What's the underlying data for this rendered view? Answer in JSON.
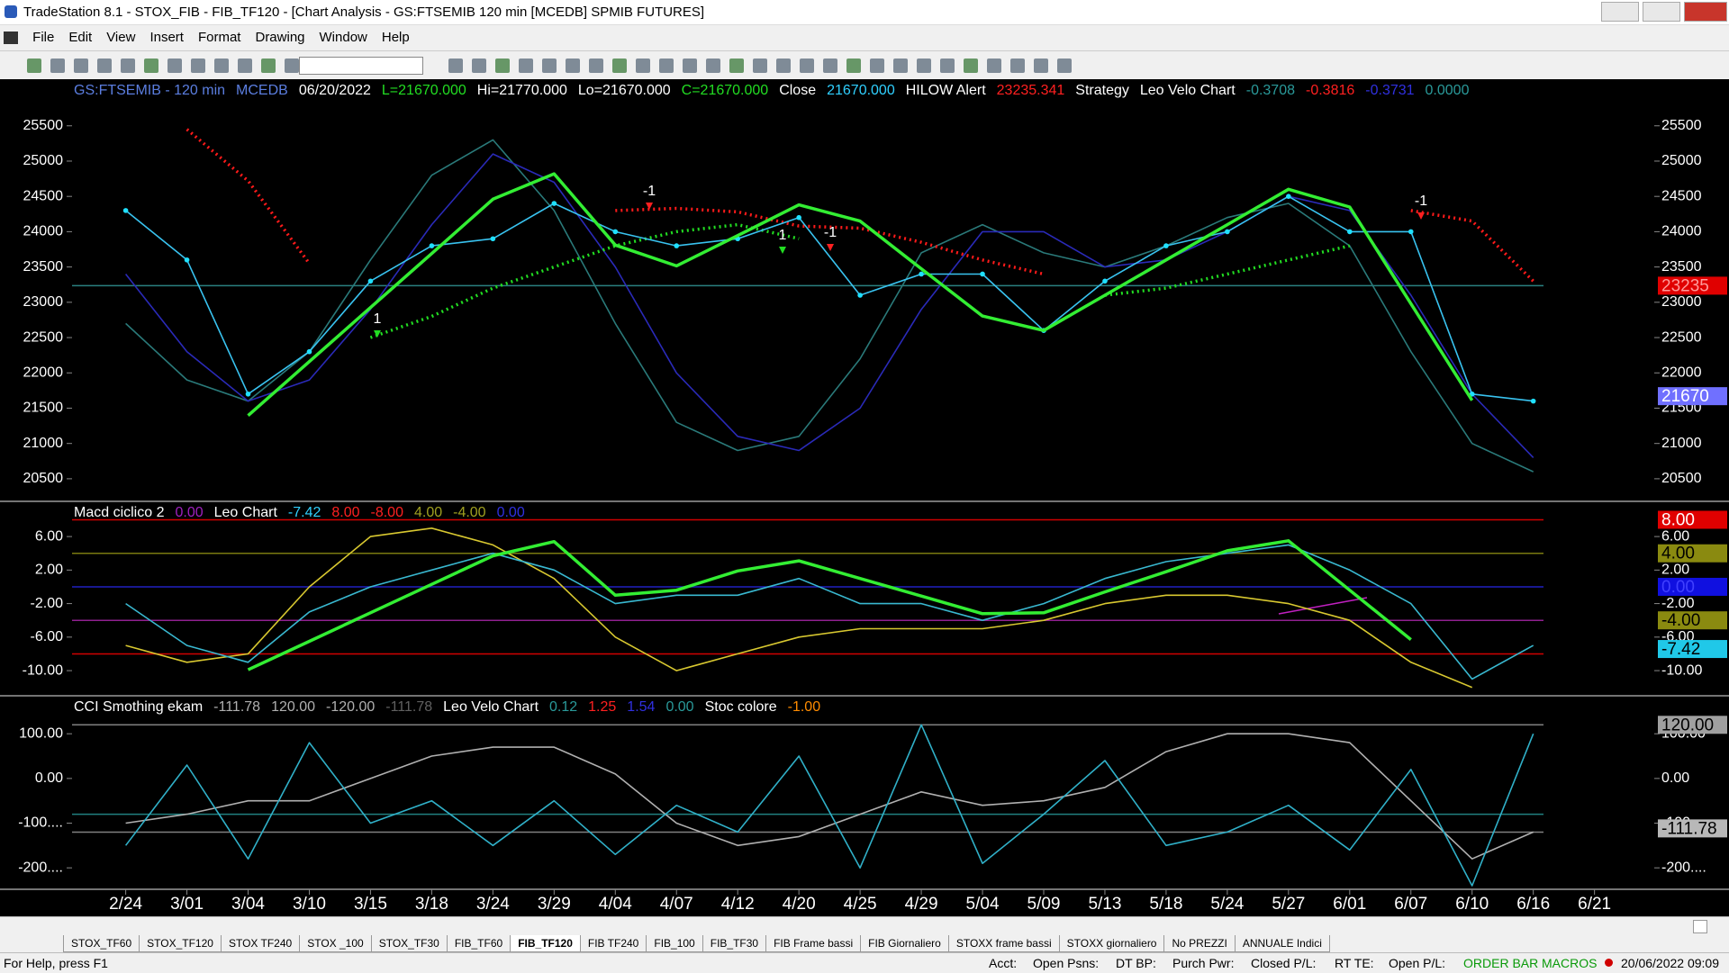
{
  "window": {
    "title": "TradeStation 8.1 - STOX_FIB - FIB_TF120 - [Chart Analysis - GS:FTSEMIB  120 min  [MCEDB] SPMIB FUTURES]"
  },
  "menu": [
    "File",
    "Edit",
    "View",
    "Insert",
    "Format",
    "Drawing",
    "Window",
    "Help"
  ],
  "chart_data": [
    {
      "type": "line",
      "legend_items": [
        {
          "text": "GS:FTSEMIB - 120 min",
          "color": "#5b7ee0"
        },
        {
          "text": "MCEDB",
          "color": "#5b7ee0"
        },
        {
          "text": "06/20/2022",
          "color": "#ffffff"
        },
        {
          "text": "L=21670.000",
          "color": "#22dd22"
        },
        {
          "text": "Hi=21770.000",
          "color": "#ffffff"
        },
        {
          "text": "Lo=21670.000",
          "color": "#ffffff"
        },
        {
          "text": "C=21670.000",
          "color": "#22dd22"
        },
        {
          "text": "Close",
          "color": "#ffffff"
        },
        {
          "text": "21670.000",
          "color": "#30d0ff"
        },
        {
          "text": "HILOW Alert",
          "color": "#ffffff"
        },
        {
          "text": "23235.341",
          "color": "#ff2020"
        },
        {
          "text": "Strategy",
          "color": "#ffffff"
        },
        {
          "text": "Leo Velo Chart",
          "color": "#ffffff"
        },
        {
          "text": "-0.3708",
          "color": "#2a9a9a"
        },
        {
          "text": "-0.3816",
          "color": "#ff2020"
        },
        {
          "text": "-0.3731",
          "color": "#3030e0"
        },
        {
          "text": "0.0000",
          "color": "#2a9a9a"
        }
      ],
      "categories": [
        "2/24",
        "3/01",
        "3/04",
        "3/10",
        "3/15",
        "3/18",
        "3/24",
        "3/29",
        "4/04",
        "4/07",
        "4/12",
        "4/20",
        "4/25",
        "4/29",
        "5/04",
        "5/09",
        "5/13",
        "5/18",
        "5/24",
        "5/27",
        "6/01",
        "6/07",
        "6/10",
        "6/16",
        "6/21"
      ],
      "ylim": [
        20180,
        26160
      ],
      "yticks": [
        20500,
        21000,
        21500,
        22000,
        22500,
        23000,
        23500,
        24000,
        24500,
        25000,
        25500
      ],
      "series": [
        {
          "color": "#2a7a7a",
          "style": "solid",
          "values": [
            22700,
            21900,
            21600,
            22300,
            23600,
            24800,
            25300,
            24300,
            22700,
            21300,
            20900,
            21100,
            22200,
            23700,
            24100,
            23700,
            23500,
            23800,
            24200,
            24400,
            23800,
            22300,
            21000,
            20600,
            null
          ]
        },
        {
          "color": "#2a2ab8",
          "style": "solid",
          "values": [
            23400,
            22300,
            21600,
            21900,
            22900,
            24100,
            25100,
            24700,
            23500,
            22000,
            21100,
            20900,
            21500,
            22900,
            24000,
            24000,
            23500,
            23600,
            24000,
            24500,
            24300,
            23100,
            21700,
            20800,
            null
          ]
        },
        {
          "color": "#ff1a1a",
          "style": "dotted",
          "values": [
            null,
            25450,
            24720,
            23550,
            null,
            null,
            null,
            null,
            24300,
            24330,
            24280,
            24080,
            24050,
            23850,
            23600,
            23400,
            null,
            null,
            null,
            null,
            null,
            24300,
            24150,
            23300,
            null
          ]
        },
        {
          "color": "#22dd22",
          "style": "dotted",
          "values": [
            null,
            null,
            null,
            null,
            22500,
            22800,
            23200,
            23500,
            23800,
            24000,
            24100,
            23900,
            null,
            null,
            null,
            null,
            23100,
            23200,
            23400,
            23600,
            23800,
            null,
            null,
            null,
            null
          ]
        },
        {
          "color": "#39c3f0",
          "style": "solid",
          "markers": true,
          "values": [
            24300,
            23600,
            21700,
            22300,
            23300,
            23800,
            23900,
            24400,
            24000,
            23800,
            23900,
            24200,
            23100,
            23400,
            23400,
            22600,
            23300,
            23800,
            24000,
            24500,
            24000,
            24000,
            21700,
            21600,
            null
          ]
        },
        {
          "color": "#33ee33",
          "style": "thick",
          "values": [
            null,
            null,
            21395,
            22160,
            22925,
            23690,
            24460,
            24820,
            23810,
            23515,
            23945,
            24380,
            24150,
            23475,
            22805,
            22600,
            23100,
            23600,
            24100,
            24600,
            24350,
            22980,
            21610,
            null,
            null
          ]
        }
      ],
      "markers": [
        {
          "value": 23235,
          "label": "23235",
          "color": "#e00000",
          "text_color": "#ff9a9a",
          "line_color": "#2a8080"
        },
        {
          "value": 21670,
          "label": "21670",
          "color": "#7070ff",
          "text_color": "#ffffff"
        }
      ],
      "annotations": [
        "-1",
        "-1",
        "-1",
        "1",
        "1"
      ]
    },
    {
      "type": "line",
      "legend_items": [
        {
          "text": "Macd ciclico 2",
          "color": "#ffffff"
        },
        {
          "text": "0.00",
          "color": "#a020c0"
        },
        {
          "text": "Leo Chart",
          "color": "#ffffff"
        },
        {
          "text": "-7.42",
          "color": "#30d0ff"
        },
        {
          "text": "8.00",
          "color": "#ff2020"
        },
        {
          "text": "-8.00",
          "color": "#ff2020"
        },
        {
          "text": "4.00",
          "color": "#a0a020"
        },
        {
          "text": "-4.00",
          "color": "#a0a020"
        },
        {
          "text": "0.00",
          "color": "#3030e0"
        }
      ],
      "ylim": [
        -13,
        10.2
      ],
      "yticks": [
        {
          "value": -10,
          "label": "-10.00"
        },
        {
          "value": -6,
          "label": "-6.00"
        },
        {
          "value": -2,
          "label": "-2.00"
        },
        {
          "value": 2,
          "label": "2.00"
        },
        {
          "value": 6,
          "label": "6.00"
        }
      ],
      "levels": [
        {
          "value": 8,
          "color": "#d00000"
        },
        {
          "value": 4,
          "color": "#7a7a10"
        },
        {
          "value": 0,
          "color": "#2020c0"
        },
        {
          "value": -4,
          "color": "#902090"
        },
        {
          "value": -8,
          "color": "#d00000"
        }
      ],
      "series": [
        {
          "color": "#d8c830",
          "style": "solid",
          "values": [
            -7,
            -9,
            -8,
            0,
            6,
            7,
            5,
            1,
            -6,
            -10,
            -8,
            -6,
            -5,
            -5,
            -5,
            -4,
            -2,
            -1,
            -1,
            -2,
            -4,
            -9,
            -12,
            null,
            null
          ]
        },
        {
          "color": "#39b8d0",
          "style": "solid",
          "values": [
            -2,
            -7,
            -9,
            -3,
            0,
            2,
            4,
            2,
            -2,
            -1,
            -1,
            1,
            -2,
            -2,
            -4,
            -2,
            1,
            3,
            4,
            5,
            2,
            -2,
            -11,
            -7,
            null
          ]
        },
        {
          "color": "#33ee33",
          "style": "thick",
          "values": [
            null,
            null,
            -9.9,
            -6.5,
            -3.1,
            0.3,
            3.7,
            5.4,
            -1.0,
            -0.4,
            1.9,
            3.1,
            1.0,
            -1.1,
            -3.2,
            -3.1,
            -0.6,
            1.8,
            4.3,
            5.5,
            -0.4,
            -6.3,
            null,
            null,
            null
          ]
        }
      ],
      "markers": [
        {
          "value": 8,
          "label": "8.00",
          "color": "#e00000",
          "text_color": "#ffffff"
        },
        {
          "value": 4,
          "label": "4.00",
          "color": "#8a8a10",
          "text_color": "#000000"
        },
        {
          "value": 0,
          "label": "0.00",
          "color": "#1010e0",
          "text_color": "#4040ff"
        },
        {
          "value": -4,
          "label": "-4.00",
          "color": "#8a8a10",
          "text_color": "#000000"
        },
        {
          "value": -7.42,
          "label": "-7.42",
          "color": "#20c8e8",
          "text_color": "#000000"
        }
      ]
    },
    {
      "type": "line",
      "legend_items": [
        {
          "text": "CCI Smothing ekam",
          "color": "#ffffff"
        },
        {
          "text": "-111.78",
          "color": "#b0b0b0"
        },
        {
          "text": "120.00",
          "color": "#b0b0b0"
        },
        {
          "text": "-120.00",
          "color": "#b0b0b0"
        },
        {
          "text": "-111.78",
          "color": "#606060"
        },
        {
          "text": "Leo Velo Chart",
          "color": "#ffffff"
        },
        {
          "text": "0.12",
          "color": "#2a9a9a"
        },
        {
          "text": "1.25",
          "color": "#ff2020"
        },
        {
          "text": "1.54",
          "color": "#3030e0"
        },
        {
          "text": "0.00",
          "color": "#2a9a9a"
        },
        {
          "text": "Stoc colore",
          "color": "#ffffff"
        },
        {
          "text": "-1.00",
          "color": "#ff8c00"
        }
      ],
      "ylim": [
        -248,
        185
      ],
      "yticks": [
        {
          "value": -200,
          "label": "-200...."
        },
        {
          "value": -100,
          "label": "-100...."
        },
        {
          "value": 0,
          "label": "0.00"
        },
        {
          "value": 100,
          "label": "100.00"
        }
      ],
      "levels": [
        {
          "value": 120,
          "color": "#808080"
        },
        {
          "value": -80,
          "color": "#208080"
        },
        {
          "value": -120,
          "color": "#808080"
        }
      ],
      "series": [
        {
          "color": "#b0b0b0",
          "style": "solid",
          "values": [
            -100,
            -80,
            -50,
            -50,
            0,
            50,
            70,
            70,
            10,
            -100,
            -150,
            -130,
            -80,
            -30,
            -60,
            -50,
            -20,
            60,
            100,
            100,
            80,
            -50,
            -180,
            -120,
            null
          ]
        },
        {
          "color": "#30b0c8",
          "style": "solid",
          "values": [
            -150,
            30,
            -180,
            80,
            -100,
            -50,
            -150,
            -50,
            -170,
            -60,
            -120,
            50,
            -200,
            120,
            -190,
            -80,
            40,
            -150,
            -120,
            -60,
            -160,
            20,
            -240,
            100,
            null
          ]
        }
      ],
      "markers": [
        {
          "value": 120,
          "label": "120.00",
          "color": "#a0a0a0",
          "text_color": "#000000"
        },
        {
          "value": -111.78,
          "label": "-111.78",
          "color": "#b8b8b8",
          "text_color": "#000000"
        }
      ]
    }
  ],
  "tabs": [
    "STOX_TF60",
    "STOX_TF120",
    "STOX TF240",
    "STOX _100",
    "STOX_TF30",
    "FIB_TF60",
    "FIB_TF120",
    "FIB TF240",
    "FIB_100",
    "FIB_TF30",
    "FIB Frame bassi",
    "FIB Giornaliero",
    "STOXX frame bassi",
    "STOXX giornaliero",
    "No PREZZI",
    "ANNUALE Indici"
  ],
  "active_tab": "FIB_TF120",
  "status": {
    "help": "For Help, press F1",
    "fields": [
      "Acct:",
      "Open Psns:",
      "DT BP:",
      "Purch Pwr:",
      "Closed P/L:",
      "RT TE:",
      "Open P/L:"
    ],
    "order_bar": "ORDER BAR",
    "macros": "MACROS",
    "datetime": "20/06/2022 09:09"
  }
}
